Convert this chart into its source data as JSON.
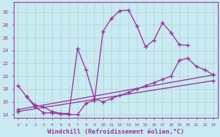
{
  "background_color": "#c8eaf0",
  "grid_color": "#b0d0d8",
  "line_color": "#993399",
  "marker": "+",
  "markersize": 4,
  "linewidth": 1.0,
  "xlabel": "Windchill (Refroidissement éolien,°C)",
  "xlabel_fontsize": 6.5,
  "ylabel_ticks": [
    14,
    16,
    18,
    20,
    22,
    24,
    26,
    28,
    30
  ],
  "xlim": [
    -0.5,
    23.5
  ],
  "ylim": [
    13.5,
    31.5
  ],
  "series": [
    {
      "x": [
        0,
        1,
        2,
        3,
        4,
        5,
        6,
        7,
        8,
        9,
        10,
        11,
        12,
        13,
        14,
        15,
        16,
        17,
        18,
        19,
        20
      ],
      "y": [
        18.5,
        16.8,
        15.2,
        14.3,
        14.3,
        14.1,
        14.0,
        14.0,
        15.8,
        16.2,
        27.0,
        29.0,
        30.2,
        30.3,
        27.8,
        24.6,
        25.6,
        28.3,
        26.8,
        24.9,
        24.8
      ]
    },
    {
      "x": [
        1,
        2,
        3,
        4,
        5,
        6,
        7,
        8,
        9,
        10,
        11,
        12,
        13,
        14,
        15,
        16,
        17,
        18,
        19,
        20,
        21,
        22,
        23
      ],
      "y": [
        16.8,
        15.5,
        15.2,
        14.5,
        14.2,
        14.2,
        24.3,
        21.0,
        16.5,
        16.0,
        16.5,
        17.0,
        17.5,
        18.0,
        18.5,
        19.0,
        19.5,
        20.0,
        22.5,
        22.8,
        21.5,
        21.0,
        20.2
      ]
    },
    {
      "x": [
        0,
        23
      ],
      "y": [
        14.8,
        20.2
      ]
    },
    {
      "x": [
        0,
        23
      ],
      "y": [
        14.5,
        19.3
      ]
    }
  ]
}
